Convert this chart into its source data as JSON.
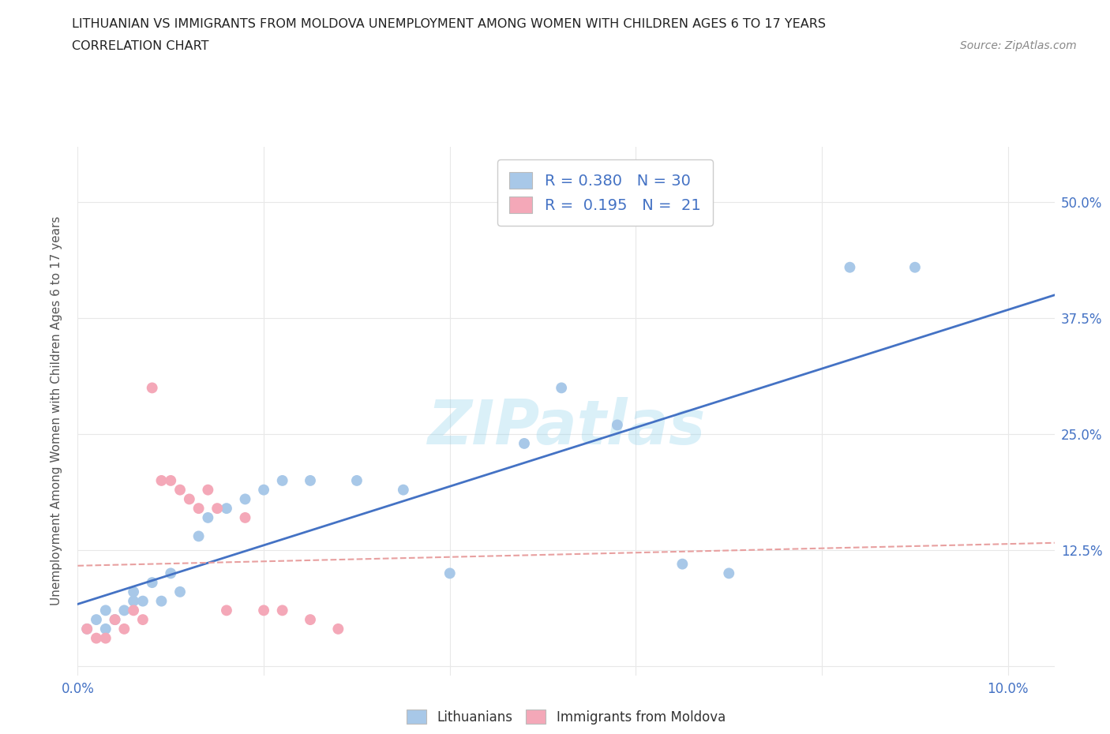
{
  "title_line1": "LITHUANIAN VS IMMIGRANTS FROM MOLDOVA UNEMPLOYMENT AMONG WOMEN WITH CHILDREN AGES 6 TO 17 YEARS",
  "title_line2": "CORRELATION CHART",
  "source": "Source: ZipAtlas.com",
  "ylabel": "Unemployment Among Women with Children Ages 6 to 17 years",
  "xlim": [
    0.0,
    0.105
  ],
  "ylim": [
    -0.01,
    0.56
  ],
  "xticks": [
    0.0,
    0.02,
    0.04,
    0.06,
    0.08,
    0.1
  ],
  "xtick_labels": [
    "0.0%",
    "",
    "",
    "",
    "",
    "10.0%"
  ],
  "yticks": [
    0.0,
    0.125,
    0.25,
    0.375,
    0.5
  ],
  "ytick_labels": [
    "",
    "12.5%",
    "25.0%",
    "37.5%",
    "50.0%"
  ],
  "lithuanian_color": "#a8c8e8",
  "moldova_color": "#f4a8b8",
  "trend_lithuanian_color": "#4472c4",
  "trend_moldova_color": "#e8a0a0",
  "R_lithuanian": 0.38,
  "N_lithuanian": 30,
  "R_moldova": 0.195,
  "N_moldova": 21,
  "background_color": "#ffffff",
  "grid_color": "#e8e8e8",
  "lithuanian_x": [
    0.001,
    0.002,
    0.003,
    0.003,
    0.004,
    0.005,
    0.006,
    0.006,
    0.007,
    0.008,
    0.009,
    0.01,
    0.011,
    0.013,
    0.014,
    0.016,
    0.018,
    0.02,
    0.022,
    0.025,
    0.03,
    0.035,
    0.04,
    0.048,
    0.052,
    0.058,
    0.065,
    0.07,
    0.083,
    0.09
  ],
  "lithuanian_y": [
    0.04,
    0.05,
    0.04,
    0.06,
    0.05,
    0.06,
    0.07,
    0.08,
    0.07,
    0.09,
    0.07,
    0.1,
    0.08,
    0.14,
    0.16,
    0.17,
    0.18,
    0.19,
    0.2,
    0.2,
    0.2,
    0.19,
    0.1,
    0.24,
    0.3,
    0.26,
    0.11,
    0.1,
    0.43,
    0.43
  ],
  "moldova_x": [
    0.001,
    0.002,
    0.003,
    0.004,
    0.005,
    0.006,
    0.007,
    0.008,
    0.009,
    0.01,
    0.011,
    0.012,
    0.013,
    0.014,
    0.015,
    0.016,
    0.018,
    0.02,
    0.022,
    0.025,
    0.028
  ],
  "moldova_y": [
    0.04,
    0.03,
    0.03,
    0.05,
    0.04,
    0.06,
    0.05,
    0.3,
    0.2,
    0.2,
    0.19,
    0.18,
    0.17,
    0.19,
    0.17,
    0.06,
    0.16,
    0.06,
    0.06,
    0.05,
    0.04
  ]
}
